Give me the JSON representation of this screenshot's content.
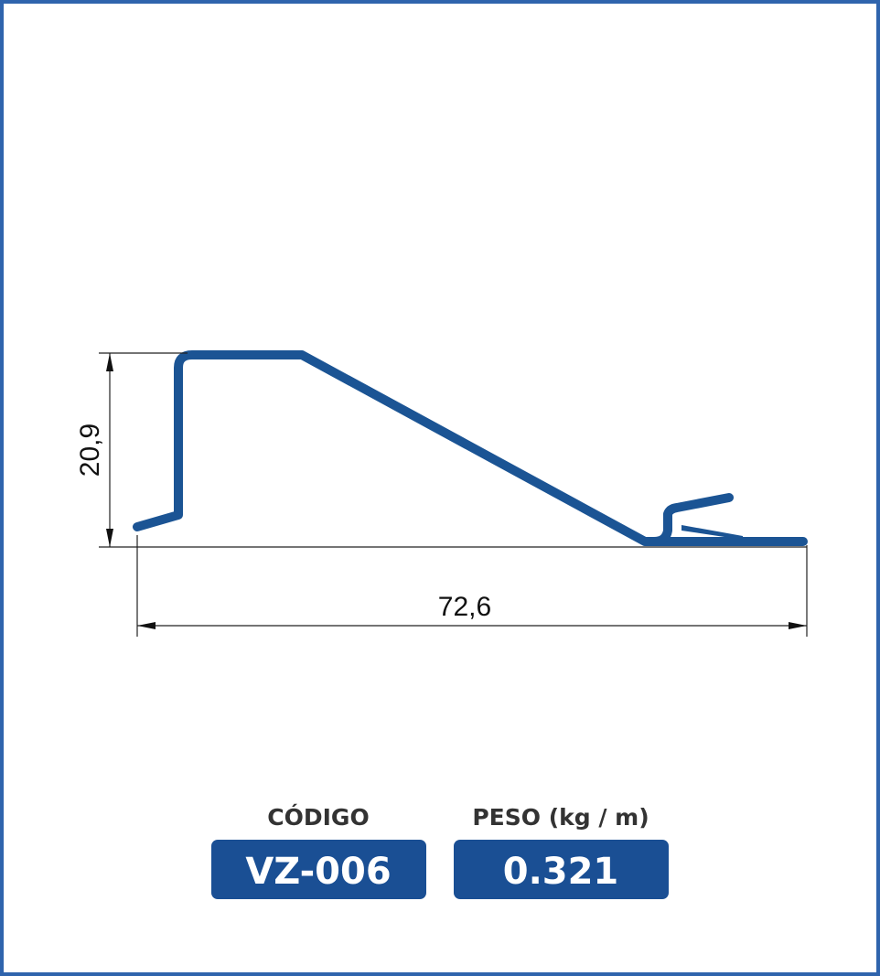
{
  "dimensions": {
    "height": "20,9",
    "width": "72,6"
  },
  "fields": [
    {
      "label": "CÓDIGO",
      "value": "VZ-006"
    },
    {
      "label": "PESO (kg / m)",
      "value": "0.321"
    }
  ]
}
